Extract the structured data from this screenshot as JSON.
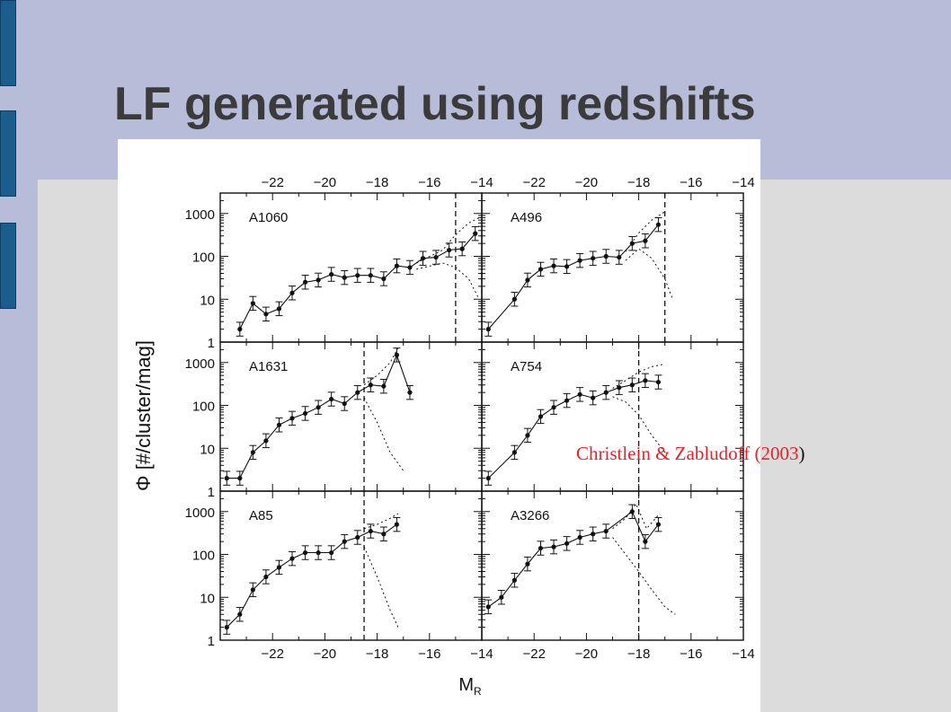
{
  "slide": {
    "title": "LF generated using redshifts",
    "citation": "Christlein & Zabludoff (2003",
    "citation_tail": ")",
    "colors": {
      "background": "#b7bcd9",
      "body_panel": "#dcdcdc",
      "side_bar": "#1b5d8d",
      "title_text": "#3b3b3b",
      "citation_text": "#e8212a"
    }
  },
  "chart_data": {
    "type": "scatter",
    "xlabel": "M",
    "xlabel_subscript": "R",
    "ylabel": "Φ [#/cluster/mag]",
    "x_tick_labels": [
      "−22",
      "−20",
      "−18",
      "−16",
      "−14"
    ],
    "x_ticks": [
      -22,
      -20,
      -18,
      -16,
      -14
    ],
    "y_tick_labels": [
      "1",
      "10",
      "100",
      "1000"
    ],
    "y_ticks": [
      1,
      10,
      100,
      1000
    ],
    "xlim": [
      -24,
      -14
    ],
    "ylim": [
      1,
      3000
    ],
    "y_scale": "log",
    "panels": [
      {
        "label": "A1060",
        "cutoff_mag": -15,
        "points": [
          [
            -23.25,
            2
          ],
          [
            -22.75,
            8
          ],
          [
            -22.25,
            4.5
          ],
          [
            -21.75,
            6
          ],
          [
            -21.25,
            14
          ],
          [
            -20.75,
            25
          ],
          [
            -20.25,
            28
          ],
          [
            -19.75,
            38
          ],
          [
            -19.25,
            32
          ],
          [
            -18.75,
            36
          ],
          [
            -18.25,
            36
          ],
          [
            -17.75,
            30
          ],
          [
            -17.25,
            60
          ],
          [
            -16.75,
            55
          ],
          [
            -16.25,
            90
          ],
          [
            -15.75,
            95
          ],
          [
            -15.25,
            140
          ],
          [
            -14.75,
            150
          ],
          [
            -14.25,
            340
          ]
        ],
        "upper": [
          [
            -16.5,
            70
          ],
          [
            -15.5,
            140
          ],
          [
            -15,
            320
          ],
          [
            -14.5,
            600
          ],
          [
            -14.1,
            800
          ]
        ],
        "lower": [
          [
            -16.5,
            50
          ],
          [
            -15.5,
            70
          ],
          [
            -15,
            55
          ],
          [
            -14.5,
            30
          ],
          [
            -14.1,
            10
          ]
        ]
      },
      {
        "label": "A496",
        "cutoff_mag": -17,
        "points": [
          [
            -23.75,
            2
          ],
          [
            -22.75,
            10
          ],
          [
            -22.25,
            28
          ],
          [
            -21.75,
            50
          ],
          [
            -21.25,
            60
          ],
          [
            -20.75,
            58
          ],
          [
            -20.25,
            80
          ],
          [
            -19.75,
            90
          ],
          [
            -19.25,
            100
          ],
          [
            -18.75,
            95
          ],
          [
            -18.25,
            200
          ],
          [
            -17.75,
            230
          ],
          [
            -17.25,
            550
          ]
        ],
        "upper": [
          [
            -18.5,
            130
          ],
          [
            -18,
            350
          ],
          [
            -17.5,
            700
          ],
          [
            -17,
            1100
          ]
        ],
        "lower": [
          [
            -18.5,
            80
          ],
          [
            -18,
            150
          ],
          [
            -17.5,
            90
          ],
          [
            -17,
            30
          ],
          [
            -16.7,
            10
          ]
        ]
      },
      {
        "label": "A1631",
        "cutoff_mag": -18.5,
        "points": [
          [
            -23.75,
            2
          ],
          [
            -23.25,
            2
          ],
          [
            -22.75,
            8
          ],
          [
            -22.25,
            15
          ],
          [
            -21.75,
            35
          ],
          [
            -21.25,
            50
          ],
          [
            -20.75,
            65
          ],
          [
            -20.25,
            90
          ],
          [
            -19.75,
            140
          ],
          [
            -19.25,
            110
          ],
          [
            -18.75,
            200
          ],
          [
            -18.25,
            300
          ],
          [
            -17.75,
            280
          ],
          [
            -17.25,
            1500
          ],
          [
            -16.75,
            200
          ]
        ],
        "upper": [
          [
            -18.5,
            300
          ],
          [
            -18,
            500
          ],
          [
            -17.5,
            1000
          ],
          [
            -17.2,
            2200
          ]
        ],
        "lower": [
          [
            -18.5,
            150
          ],
          [
            -18,
            40
          ],
          [
            -17.5,
            8
          ],
          [
            -17,
            3
          ]
        ]
      },
      {
        "label": "A754",
        "cutoff_mag": -18,
        "points": [
          [
            -23.75,
            2
          ],
          [
            -22.75,
            8
          ],
          [
            -22.25,
            20
          ],
          [
            -21.75,
            55
          ],
          [
            -21.25,
            90
          ],
          [
            -20.75,
            130
          ],
          [
            -20.25,
            180
          ],
          [
            -19.75,
            150
          ],
          [
            -19.25,
            200
          ],
          [
            -18.75,
            260
          ],
          [
            -18.25,
            300
          ],
          [
            -17.75,
            380
          ],
          [
            -17.25,
            350
          ]
        ],
        "upper": [
          [
            -19,
            250
          ],
          [
            -18.5,
            380
          ],
          [
            -18,
            600
          ],
          [
            -17.5,
            800
          ],
          [
            -17.1,
            900
          ]
        ],
        "lower": [
          [
            -19,
            160
          ],
          [
            -18.5,
            120
          ],
          [
            -18,
            60
          ],
          [
            -17.5,
            20
          ],
          [
            -17,
            8
          ]
        ]
      },
      {
        "label": "A85",
        "cutoff_mag": -18.5,
        "points": [
          [
            -23.75,
            2
          ],
          [
            -23.25,
            4
          ],
          [
            -22.75,
            15
          ],
          [
            -22.25,
            30
          ],
          [
            -21.75,
            50
          ],
          [
            -21.25,
            80
          ],
          [
            -20.75,
            110
          ],
          [
            -20.25,
            110
          ],
          [
            -19.75,
            110
          ],
          [
            -19.25,
            200
          ],
          [
            -18.75,
            250
          ],
          [
            -18.25,
            350
          ],
          [
            -17.75,
            300
          ],
          [
            -17.25,
            500
          ]
        ],
        "upper": [
          [
            -18.5,
            400
          ],
          [
            -18,
            500
          ],
          [
            -17.5,
            700
          ],
          [
            -17.2,
            900
          ]
        ],
        "lower": [
          [
            -18.5,
            150
          ],
          [
            -18,
            30
          ],
          [
            -17.5,
            5
          ],
          [
            -17.2,
            2
          ]
        ]
      },
      {
        "label": "A3266",
        "cutoff_mag": -18,
        "points": [
          [
            -23.75,
            6
          ],
          [
            -23.25,
            10
          ],
          [
            -22.75,
            25
          ],
          [
            -22.25,
            60
          ],
          [
            -21.75,
            140
          ],
          [
            -21.25,
            150
          ],
          [
            -20.75,
            180
          ],
          [
            -20.25,
            250
          ],
          [
            -19.75,
            300
          ],
          [
            -19.25,
            350
          ],
          [
            -18.25,
            1000
          ],
          [
            -17.75,
            200
          ],
          [
            -17.25,
            500
          ]
        ],
        "upper": [
          [
            -19,
            400
          ],
          [
            -18.5,
            700
          ],
          [
            -18.1,
            1500
          ],
          [
            -17.7,
            400
          ],
          [
            -17.2,
            900
          ]
        ],
        "lower": [
          [
            -19,
            250
          ],
          [
            -18.5,
            100
          ],
          [
            -18,
            40
          ],
          [
            -17.5,
            15
          ],
          [
            -17,
            6
          ],
          [
            -16.6,
            4
          ]
        ]
      }
    ]
  }
}
